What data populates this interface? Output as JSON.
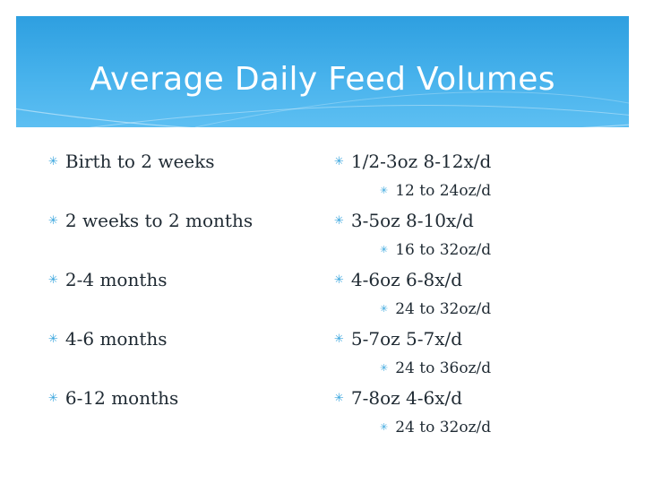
{
  "slide": {
    "title": "Average Daily Feed Volumes",
    "accent_color": "#2e9fe0",
    "bullet_icon": "asterisk-icon",
    "ages": [
      {
        "label": "Birth to 2 weeks"
      },
      {
        "label": "2 weeks to 2 months"
      },
      {
        "label": "2-4 months"
      },
      {
        "label": "4-6 months"
      },
      {
        "label": "6-12 months"
      }
    ],
    "volumes": [
      {
        "label": "1/2-3oz 8-12x/d",
        "daily": "12 to 24oz/d"
      },
      {
        "label": "3-5oz 8-10x/d",
        "daily": "16 to 32oz/d"
      },
      {
        "label": "4-6oz 6-8x/d",
        "daily": "24 to 32oz/d"
      },
      {
        "label": "5-7oz 5-7x/d",
        "daily": "24 to 36oz/d"
      },
      {
        "label": "7-8oz 4-6x/d",
        "daily": "24 to 32oz/d"
      }
    ]
  }
}
